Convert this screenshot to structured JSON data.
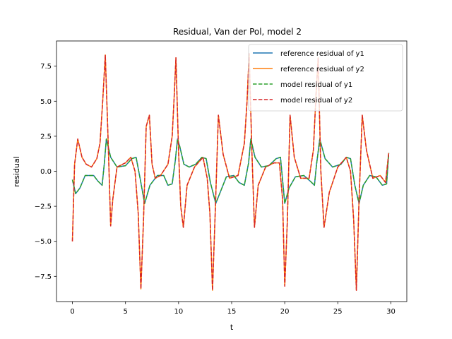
{
  "chart_data": {
    "type": "line",
    "title": "Residual, Van der Pol, model 2",
    "xlabel": "t",
    "ylabel": "residual",
    "xlim": [
      -1.5,
      31.5
    ],
    "ylim": [
      -9.3,
      9.3
    ],
    "xticks": [
      0,
      5,
      10,
      15,
      20,
      25,
      30
    ],
    "xtick_labels": [
      "0",
      "5",
      "10",
      "15",
      "20",
      "25",
      "30"
    ],
    "yticks": [
      -7.5,
      -5.0,
      -2.5,
      0.0,
      2.5,
      5.0,
      7.5
    ],
    "ytick_labels": [
      "−7.5",
      "−5.0",
      "−2.5",
      "0.0",
      "2.5",
      "5.0",
      "7.5"
    ],
    "grid": false,
    "legend_position": "top-right",
    "series": [
      {
        "name": "reference residual of y1",
        "color": "#1f77b4",
        "dash": "solid",
        "x": [
          0.0,
          0.3,
          0.7,
          1.2,
          2.0,
          2.4,
          2.8,
          3.0,
          3.2,
          3.6,
          4.2,
          5.0,
          5.6,
          6.0,
          6.4,
          6.8,
          7.3,
          8.0,
          8.6,
          9.0,
          9.4,
          9.7,
          9.9,
          10.1,
          10.5,
          11.0,
          11.6,
          12.2,
          12.6,
          13.0,
          13.5,
          14.5,
          15.2,
          15.7,
          16.2,
          16.6,
          16.8,
          17.2,
          17.8,
          18.5,
          19.2,
          19.6,
          20.0,
          20.4,
          21.0,
          21.8,
          22.4,
          22.8,
          23.0,
          23.3,
          23.8,
          24.5,
          25.3,
          25.8,
          26.2,
          26.6,
          27.0,
          27.4,
          28.0,
          28.6,
          29.2,
          29.6,
          29.8
        ],
        "y": [
          -0.6,
          -1.6,
          -1.2,
          -0.3,
          -0.3,
          -0.7,
          -1.0,
          0.5,
          2.3,
          1.0,
          0.3,
          0.4,
          0.9,
          1.0,
          -0.6,
          -2.3,
          -1.0,
          -0.3,
          -0.3,
          -1.0,
          -0.9,
          0.8,
          2.3,
          1.8,
          0.5,
          0.3,
          0.5,
          1.0,
          0.9,
          -0.8,
          -2.3,
          -0.4,
          -0.3,
          -0.8,
          -1.0,
          0.6,
          2.3,
          1.0,
          0.3,
          0.4,
          0.9,
          1.0,
          -2.3,
          -1.2,
          -0.4,
          -0.3,
          -0.7,
          -1.0,
          0.5,
          2.3,
          0.9,
          0.3,
          0.5,
          1.0,
          0.9,
          -1.0,
          -2.3,
          -1.0,
          -0.3,
          -0.4,
          -1.0,
          -0.9,
          1.3
        ]
      },
      {
        "name": "reference residual of y2",
        "color": "#ff7f0e",
        "dash": "solid",
        "x": [
          0.0,
          0.2,
          0.5,
          0.9,
          1.3,
          1.8,
          2.3,
          2.6,
          2.85,
          3.1,
          3.35,
          3.6,
          3.8,
          4.2,
          5.0,
          5.5,
          5.9,
          6.2,
          6.45,
          6.7,
          6.95,
          7.25,
          7.5,
          7.8,
          8.3,
          9.0,
          9.4,
          9.6,
          9.75,
          10.0,
          10.2,
          10.45,
          10.8,
          11.5,
          12.3,
          12.7,
          12.95,
          13.2,
          13.45,
          13.75,
          14.2,
          14.8,
          15.6,
          16.2,
          16.45,
          16.65,
          16.9,
          17.15,
          17.5,
          18.2,
          19.0,
          19.5,
          19.8,
          20.0,
          20.25,
          20.5,
          20.9,
          21.5,
          22.3,
          22.7,
          22.95,
          23.15,
          23.4,
          23.7,
          24.2,
          25.0,
          25.8,
          26.2,
          26.5,
          26.75,
          27.0,
          27.3,
          27.7,
          28.3,
          29.0,
          29.5,
          29.8
        ],
        "y": [
          -5.0,
          0.5,
          2.3,
          1.0,
          0.5,
          0.3,
          0.9,
          2.0,
          5.0,
          8.3,
          2.5,
          -3.9,
          -2.0,
          0.3,
          0.6,
          1.0,
          0.0,
          -3.0,
          -8.4,
          -3.5,
          3.2,
          4.0,
          0.5,
          -0.5,
          -0.3,
          0.5,
          2.5,
          5.5,
          8.1,
          1.5,
          -2.5,
          -4.0,
          -1.0,
          0.3,
          1.0,
          -0.5,
          -3.0,
          -8.5,
          -3.0,
          4.0,
          1.2,
          -0.5,
          -0.3,
          2.0,
          5.0,
          8.4,
          1.5,
          -4.0,
          -1.0,
          0.3,
          0.6,
          0.6,
          -2.0,
          -8.2,
          -3.5,
          4.0,
          1.0,
          -0.5,
          -0.5,
          1.5,
          5.5,
          8.1,
          0.0,
          -4.0,
          -1.5,
          0.3,
          1.0,
          0.0,
          -3.5,
          -8.5,
          -2.0,
          4.0,
          1.5,
          -0.5,
          -0.3,
          -0.8,
          1.3
        ]
      },
      {
        "name": "model residual of y1",
        "color": "#2ca02c",
        "dash": "dashed",
        "x": [
          0.0,
          0.3,
          0.7,
          1.2,
          2.0,
          2.4,
          2.8,
          3.0,
          3.2,
          3.6,
          4.2,
          5.0,
          5.6,
          6.0,
          6.4,
          6.8,
          7.3,
          8.0,
          8.6,
          9.0,
          9.4,
          9.7,
          9.9,
          10.1,
          10.5,
          11.0,
          11.6,
          12.2,
          12.6,
          13.0,
          13.5,
          14.5,
          15.2,
          15.7,
          16.2,
          16.6,
          16.8,
          17.2,
          17.8,
          18.5,
          19.2,
          19.6,
          20.0,
          20.4,
          21.0,
          21.8,
          22.4,
          22.8,
          23.0,
          23.3,
          23.8,
          24.5,
          25.3,
          25.8,
          26.2,
          26.6,
          27.0,
          27.4,
          28.0,
          28.6,
          29.2,
          29.6,
          29.8
        ],
        "y": [
          -0.6,
          -1.6,
          -1.2,
          -0.3,
          -0.3,
          -0.7,
          -1.0,
          0.5,
          2.3,
          1.0,
          0.3,
          0.4,
          0.9,
          1.0,
          -0.6,
          -2.3,
          -1.0,
          -0.3,
          -0.3,
          -1.0,
          -0.9,
          0.8,
          2.3,
          1.8,
          0.5,
          0.3,
          0.5,
          1.0,
          0.9,
          -0.8,
          -2.3,
          -0.4,
          -0.3,
          -0.8,
          -1.0,
          0.6,
          2.3,
          1.0,
          0.3,
          0.4,
          0.9,
          1.0,
          -2.3,
          -1.2,
          -0.4,
          -0.3,
          -0.7,
          -1.0,
          0.5,
          2.3,
          0.9,
          0.3,
          0.5,
          1.0,
          0.9,
          -1.0,
          -2.3,
          -1.0,
          -0.3,
          -0.4,
          -1.0,
          -0.9,
          1.3
        ]
      },
      {
        "name": "model residual of y2",
        "color": "#d62728",
        "dash": "dashed",
        "x": [
          0.0,
          0.2,
          0.5,
          0.9,
          1.3,
          1.8,
          2.3,
          2.6,
          2.85,
          3.1,
          3.35,
          3.6,
          3.8,
          4.2,
          5.0,
          5.5,
          5.9,
          6.2,
          6.45,
          6.7,
          6.95,
          7.25,
          7.5,
          7.8,
          8.3,
          9.0,
          9.4,
          9.6,
          9.75,
          10.0,
          10.2,
          10.45,
          10.8,
          11.5,
          12.3,
          12.7,
          12.95,
          13.2,
          13.45,
          13.75,
          14.2,
          14.8,
          15.6,
          16.2,
          16.45,
          16.65,
          16.9,
          17.15,
          17.5,
          18.2,
          19.0,
          19.5,
          19.8,
          20.0,
          20.25,
          20.5,
          20.9,
          21.5,
          22.3,
          22.7,
          22.95,
          23.15,
          23.4,
          23.7,
          24.2,
          25.0,
          25.8,
          26.2,
          26.5,
          26.75,
          27.0,
          27.3,
          27.7,
          28.3,
          29.0,
          29.5,
          29.8
        ],
        "y": [
          -5.0,
          0.5,
          2.3,
          1.0,
          0.5,
          0.3,
          0.9,
          2.0,
          5.0,
          8.3,
          2.5,
          -3.9,
          -2.0,
          0.3,
          0.6,
          1.0,
          0.0,
          -3.0,
          -8.4,
          -3.5,
          3.2,
          4.0,
          0.5,
          -0.5,
          -0.3,
          0.5,
          2.5,
          5.5,
          8.1,
          1.5,
          -2.5,
          -4.0,
          -1.0,
          0.3,
          1.0,
          -0.5,
          -3.0,
          -8.5,
          -3.0,
          4.0,
          1.2,
          -0.5,
          -0.3,
          2.0,
          5.0,
          8.4,
          1.5,
          -4.0,
          -1.0,
          0.3,
          0.6,
          0.6,
          -2.0,
          -8.2,
          -3.5,
          4.0,
          1.0,
          -0.5,
          -0.5,
          1.5,
          5.5,
          8.1,
          0.0,
          -4.0,
          -1.5,
          0.3,
          1.0,
          0.0,
          -3.5,
          -8.5,
          -2.0,
          4.0,
          1.5,
          -0.5,
          -0.3,
          -0.8,
          1.3
        ]
      }
    ]
  }
}
